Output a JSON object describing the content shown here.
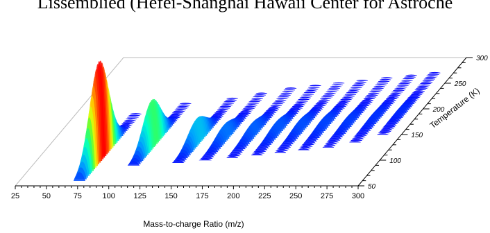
{
  "caption_cut": "Lissemblied (Hefei-Shanghai Hawaii Center for Astroche",
  "chart_data": {
    "type": "3d-waterfall",
    "xlabel": "Mass-to-charge Ratio (m/z)",
    "ylabel": "Temperature (K)",
    "x_ticks": [
      "25",
      "50",
      "75",
      "100",
      "125",
      "150",
      "175",
      "200",
      "225",
      "250",
      "275",
      "300"
    ],
    "y_ticks": [
      "50",
      "100",
      "150",
      "200",
      "250",
      "300"
    ],
    "xlim": [
      25,
      300
    ],
    "ylim": [
      50,
      300
    ],
    "peaks": [
      {
        "mz": 73,
        "temp_start": 60,
        "temp_end": 190,
        "intensity": 1.0
      },
      {
        "mz": 106,
        "temp_start": 90,
        "temp_end": 210,
        "intensity": 0.45
      },
      {
        "mz": 140,
        "temp_start": 95,
        "temp_end": 220,
        "intensity": 0.22
      },
      {
        "mz": 160,
        "temp_start": 100,
        "temp_end": 230,
        "intensity": 0.12
      },
      {
        "mz": 180,
        "temp_start": 105,
        "temp_end": 240,
        "intensity": 0.1
      },
      {
        "mz": 198,
        "temp_start": 110,
        "temp_end": 245,
        "intensity": 0.09
      },
      {
        "mz": 215,
        "temp_start": 115,
        "temp_end": 250,
        "intensity": 0.08
      },
      {
        "mz": 232,
        "temp_start": 120,
        "temp_end": 255,
        "intensity": 0.07
      },
      {
        "mz": 250,
        "temp_start": 125,
        "temp_end": 260,
        "intensity": 0.06
      },
      {
        "mz": 268,
        "temp_start": 135,
        "temp_end": 265,
        "intensity": 0.05
      },
      {
        "mz": 285,
        "temp_start": 150,
        "temp_end": 270,
        "intensity": 0.04
      }
    ],
    "colormap": [
      "#0000ff",
      "#00a0ff",
      "#00ffd0",
      "#40ff40",
      "#ffff00",
      "#ff8000",
      "#ff0000"
    ]
  }
}
